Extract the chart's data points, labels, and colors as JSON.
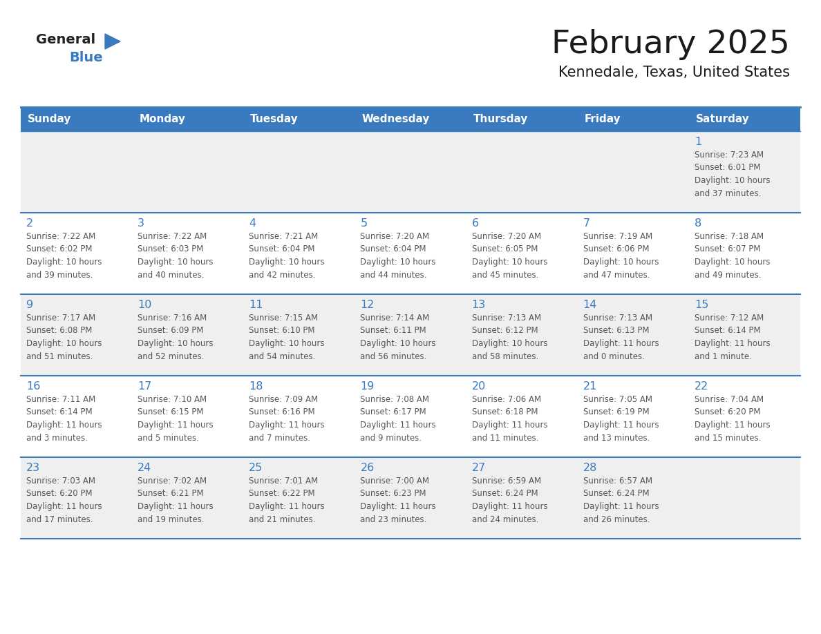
{
  "title": "February 2025",
  "subtitle": "Kennedale, Texas, United States",
  "header_bg": "#3a7abf",
  "header_text": "#ffffff",
  "header_days": [
    "Sunday",
    "Monday",
    "Tuesday",
    "Wednesday",
    "Thursday",
    "Friday",
    "Saturday"
  ],
  "row1_bg": "#efefef",
  "row_bg": "#ffffff",
  "row_last_bg": "#efefef",
  "border_color": "#3a7abf",
  "day_number_color": "#3a7abf",
  "text_color": "#555555",
  "logo_general_color": "#222222",
  "logo_blue_color": "#3a7abf",
  "calendar": [
    [
      {
        "day": null,
        "info": null
      },
      {
        "day": null,
        "info": null
      },
      {
        "day": null,
        "info": null
      },
      {
        "day": null,
        "info": null
      },
      {
        "day": null,
        "info": null
      },
      {
        "day": null,
        "info": null
      },
      {
        "day": 1,
        "info": "Sunrise: 7:23 AM\nSunset: 6:01 PM\nDaylight: 10 hours\nand 37 minutes."
      }
    ],
    [
      {
        "day": 2,
        "info": "Sunrise: 7:22 AM\nSunset: 6:02 PM\nDaylight: 10 hours\nand 39 minutes."
      },
      {
        "day": 3,
        "info": "Sunrise: 7:22 AM\nSunset: 6:03 PM\nDaylight: 10 hours\nand 40 minutes."
      },
      {
        "day": 4,
        "info": "Sunrise: 7:21 AM\nSunset: 6:04 PM\nDaylight: 10 hours\nand 42 minutes."
      },
      {
        "day": 5,
        "info": "Sunrise: 7:20 AM\nSunset: 6:04 PM\nDaylight: 10 hours\nand 44 minutes."
      },
      {
        "day": 6,
        "info": "Sunrise: 7:20 AM\nSunset: 6:05 PM\nDaylight: 10 hours\nand 45 minutes."
      },
      {
        "day": 7,
        "info": "Sunrise: 7:19 AM\nSunset: 6:06 PM\nDaylight: 10 hours\nand 47 minutes."
      },
      {
        "day": 8,
        "info": "Sunrise: 7:18 AM\nSunset: 6:07 PM\nDaylight: 10 hours\nand 49 minutes."
      }
    ],
    [
      {
        "day": 9,
        "info": "Sunrise: 7:17 AM\nSunset: 6:08 PM\nDaylight: 10 hours\nand 51 minutes."
      },
      {
        "day": 10,
        "info": "Sunrise: 7:16 AM\nSunset: 6:09 PM\nDaylight: 10 hours\nand 52 minutes."
      },
      {
        "day": 11,
        "info": "Sunrise: 7:15 AM\nSunset: 6:10 PM\nDaylight: 10 hours\nand 54 minutes."
      },
      {
        "day": 12,
        "info": "Sunrise: 7:14 AM\nSunset: 6:11 PM\nDaylight: 10 hours\nand 56 minutes."
      },
      {
        "day": 13,
        "info": "Sunrise: 7:13 AM\nSunset: 6:12 PM\nDaylight: 10 hours\nand 58 minutes."
      },
      {
        "day": 14,
        "info": "Sunrise: 7:13 AM\nSunset: 6:13 PM\nDaylight: 11 hours\nand 0 minutes."
      },
      {
        "day": 15,
        "info": "Sunrise: 7:12 AM\nSunset: 6:14 PM\nDaylight: 11 hours\nand 1 minute."
      }
    ],
    [
      {
        "day": 16,
        "info": "Sunrise: 7:11 AM\nSunset: 6:14 PM\nDaylight: 11 hours\nand 3 minutes."
      },
      {
        "day": 17,
        "info": "Sunrise: 7:10 AM\nSunset: 6:15 PM\nDaylight: 11 hours\nand 5 minutes."
      },
      {
        "day": 18,
        "info": "Sunrise: 7:09 AM\nSunset: 6:16 PM\nDaylight: 11 hours\nand 7 minutes."
      },
      {
        "day": 19,
        "info": "Sunrise: 7:08 AM\nSunset: 6:17 PM\nDaylight: 11 hours\nand 9 minutes."
      },
      {
        "day": 20,
        "info": "Sunrise: 7:06 AM\nSunset: 6:18 PM\nDaylight: 11 hours\nand 11 minutes."
      },
      {
        "day": 21,
        "info": "Sunrise: 7:05 AM\nSunset: 6:19 PM\nDaylight: 11 hours\nand 13 minutes."
      },
      {
        "day": 22,
        "info": "Sunrise: 7:04 AM\nSunset: 6:20 PM\nDaylight: 11 hours\nand 15 minutes."
      }
    ],
    [
      {
        "day": 23,
        "info": "Sunrise: 7:03 AM\nSunset: 6:20 PM\nDaylight: 11 hours\nand 17 minutes."
      },
      {
        "day": 24,
        "info": "Sunrise: 7:02 AM\nSunset: 6:21 PM\nDaylight: 11 hours\nand 19 minutes."
      },
      {
        "day": 25,
        "info": "Sunrise: 7:01 AM\nSunset: 6:22 PM\nDaylight: 11 hours\nand 21 minutes."
      },
      {
        "day": 26,
        "info": "Sunrise: 7:00 AM\nSunset: 6:23 PM\nDaylight: 11 hours\nand 23 minutes."
      },
      {
        "day": 27,
        "info": "Sunrise: 6:59 AM\nSunset: 6:24 PM\nDaylight: 11 hours\nand 24 minutes."
      },
      {
        "day": 28,
        "info": "Sunrise: 6:57 AM\nSunset: 6:24 PM\nDaylight: 11 hours\nand 26 minutes."
      },
      {
        "day": null,
        "info": null
      }
    ]
  ],
  "fig_width": 11.88,
  "fig_height": 9.18,
  "dpi": 100
}
